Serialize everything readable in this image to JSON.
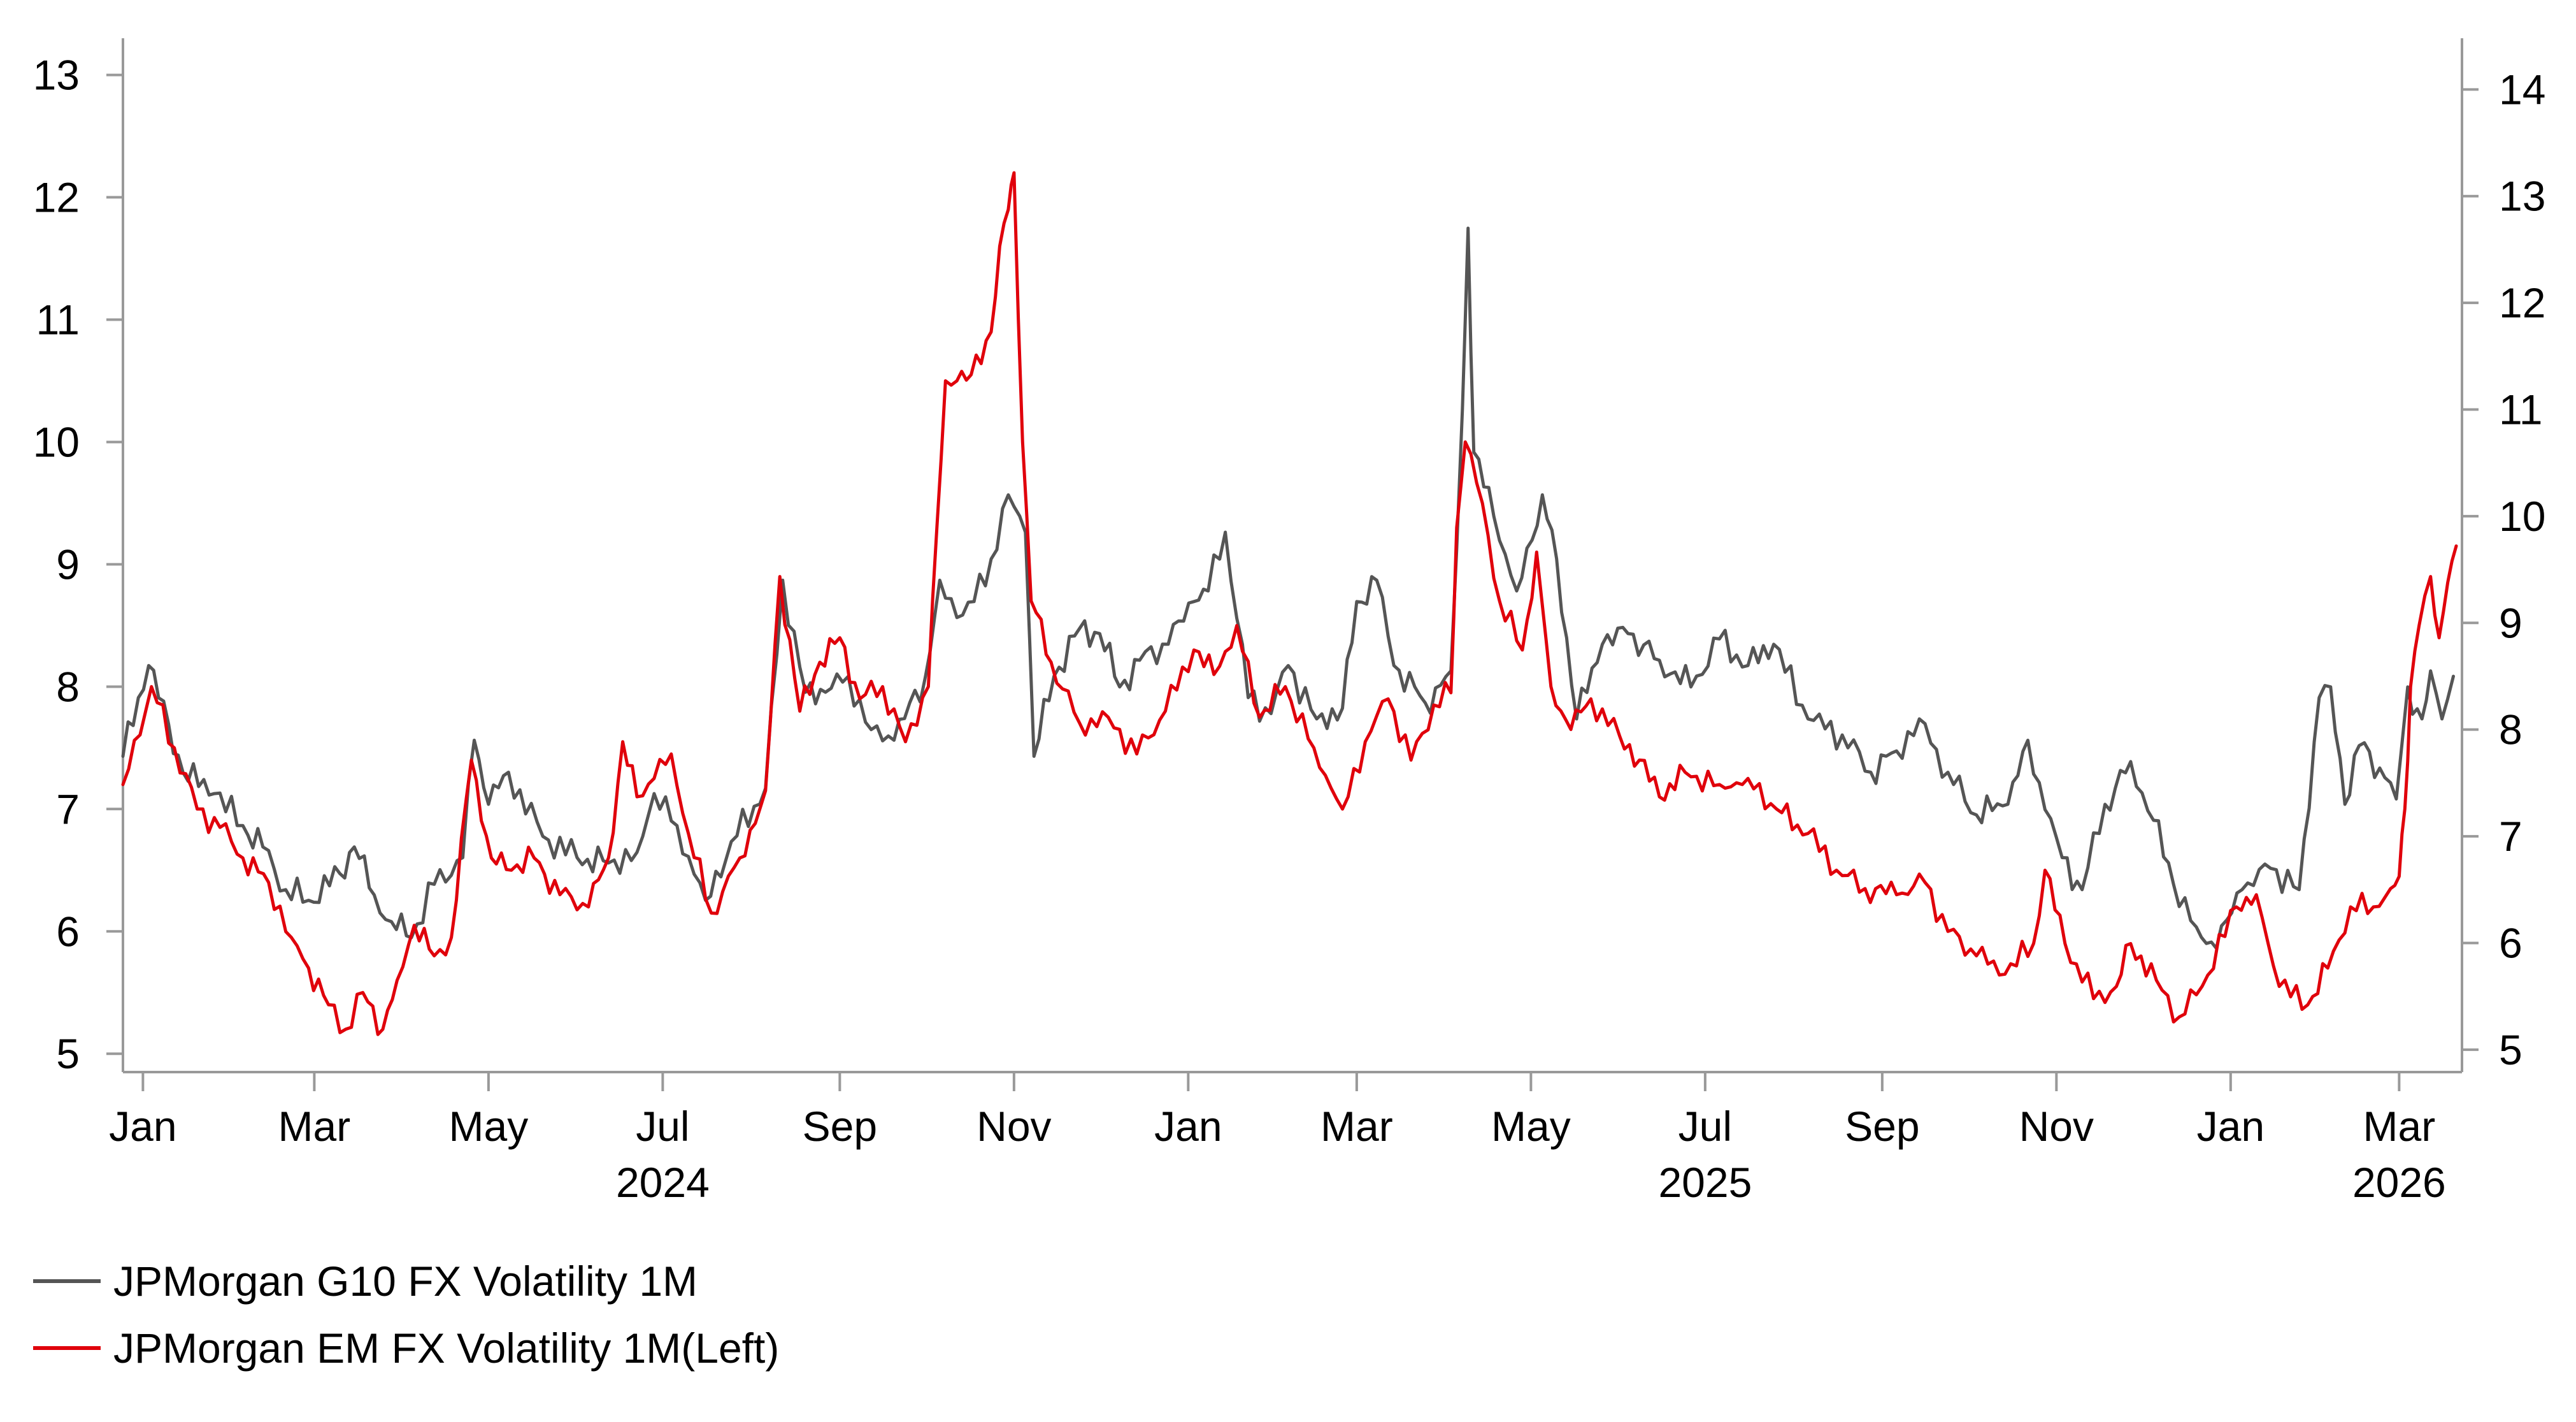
{
  "chart_data": {
    "type": "line",
    "x_axis": {
      "start": "2023-12-25",
      "end": "2026-03-23",
      "month_ticks": [
        {
          "date": "2024-01-01",
          "label": "Jan"
        },
        {
          "date": "2024-03-01",
          "label": "Mar"
        },
        {
          "date": "2024-05-01",
          "label": "May"
        },
        {
          "date": "2024-07-01",
          "label": "Jul"
        },
        {
          "date": "2024-09-01",
          "label": "Sep"
        },
        {
          "date": "2024-11-01",
          "label": "Nov"
        },
        {
          "date": "2025-01-01",
          "label": "Jan"
        },
        {
          "date": "2025-03-01",
          "label": "Mar"
        },
        {
          "date": "2025-05-01",
          "label": "May"
        },
        {
          "date": "2025-07-01",
          "label": "Jul"
        },
        {
          "date": "2025-09-01",
          "label": "Sep"
        },
        {
          "date": "2025-11-01",
          "label": "Nov"
        },
        {
          "date": "2026-01-01",
          "label": "Jan"
        },
        {
          "date": "2026-03-01",
          "label": "Mar"
        }
      ],
      "year_labels": [
        {
          "date": "2024-07-01",
          "label": "2024"
        },
        {
          "date": "2025-07-01",
          "label": "2025"
        },
        {
          "date": "2026-03-01",
          "label": "2026"
        }
      ]
    },
    "y_left": {
      "min": 4.85,
      "max": 13.3,
      "ticks": [
        5,
        6,
        7,
        8,
        9,
        10,
        11,
        12,
        13
      ]
    },
    "y_right": {
      "min": 4.79,
      "max": 14.48,
      "ticks": [
        5,
        6,
        7,
        8,
        9,
        10,
        11,
        12,
        13,
        14
      ]
    },
    "grid": false,
    "legend_position": "bottom-left",
    "series": [
      {
        "name": "JPMorgan G10 FX Volatility 1M",
        "axis": "right",
        "color": "#555555",
        "points": [
          [
            "2023-12-25",
            7.75
          ],
          [
            "2024-01-03",
            8.6
          ],
          [
            "2024-01-10",
            8.05
          ],
          [
            "2024-01-15",
            7.6
          ],
          [
            "2024-01-26",
            7.4
          ],
          [
            "2024-02-05",
            7.1
          ],
          [
            "2024-02-12",
            6.9
          ],
          [
            "2024-02-20",
            6.5
          ],
          [
            "2024-02-28",
            6.4
          ],
          [
            "2024-03-10",
            6.65
          ],
          [
            "2024-03-15",
            6.9
          ],
          [
            "2024-03-22",
            6.45
          ],
          [
            "2024-03-28",
            6.2
          ],
          [
            "2024-04-04",
            6.05
          ],
          [
            "2024-04-12",
            6.55
          ],
          [
            "2024-04-22",
            6.8
          ],
          [
            "2024-04-26",
            7.9
          ],
          [
            "2024-05-01",
            7.3
          ],
          [
            "2024-05-08",
            7.6
          ],
          [
            "2024-05-20",
            7.0
          ],
          [
            "2024-06-01",
            6.8
          ],
          [
            "2024-06-12",
            6.75
          ],
          [
            "2024-06-22",
            6.85
          ],
          [
            "2024-06-28",
            7.4
          ],
          [
            "2024-07-06",
            7.1
          ],
          [
            "2024-07-16",
            6.4
          ],
          [
            "2024-07-25",
            6.95
          ],
          [
            "2024-08-06",
            7.45
          ],
          [
            "2024-08-12",
            9.4
          ],
          [
            "2024-08-20",
            8.35
          ],
          [
            "2024-08-27",
            8.35
          ],
          [
            "2024-09-04",
            8.5
          ],
          [
            "2024-09-12",
            8.0
          ],
          [
            "2024-09-20",
            7.9
          ],
          [
            "2024-10-01",
            8.5
          ],
          [
            "2024-10-06",
            9.4
          ],
          [
            "2024-10-12",
            9.05
          ],
          [
            "2024-10-18",
            9.2
          ],
          [
            "2024-10-24",
            9.6
          ],
          [
            "2024-10-30",
            10.2
          ],
          [
            "2024-11-05",
            9.85
          ],
          [
            "2024-11-08",
            7.75
          ],
          [
            "2024-11-15",
            8.5
          ],
          [
            "2024-11-24",
            8.95
          ],
          [
            "2024-12-01",
            8.9
          ],
          [
            "2024-12-08",
            8.4
          ],
          [
            "2024-12-15",
            8.65
          ],
          [
            "2024-12-25",
            8.8
          ],
          [
            "2025-01-03",
            9.2
          ],
          [
            "2025-01-08",
            9.3
          ],
          [
            "2025-01-14",
            9.85
          ],
          [
            "2025-01-22",
            8.3
          ],
          [
            "2025-01-30",
            8.15
          ],
          [
            "2025-02-05",
            8.6
          ],
          [
            "2025-02-15",
            8.1
          ],
          [
            "2025-02-24",
            8.2
          ],
          [
            "2025-03-01",
            9.2
          ],
          [
            "2025-03-08",
            9.4
          ],
          [
            "2025-03-14",
            8.6
          ],
          [
            "2025-03-25",
            8.25
          ],
          [
            "2025-04-03",
            8.55
          ],
          [
            "2025-04-07",
            11.0
          ],
          [
            "2025-04-09",
            12.7
          ],
          [
            "2025-04-11",
            10.6
          ],
          [
            "2025-04-18",
            10.0
          ],
          [
            "2025-04-26",
            9.3
          ],
          [
            "2025-05-05",
            10.2
          ],
          [
            "2025-05-10",
            9.6
          ],
          [
            "2025-05-17",
            8.1
          ],
          [
            "2025-05-26",
            8.8
          ],
          [
            "2025-06-04",
            8.9
          ],
          [
            "2025-06-15",
            8.65
          ],
          [
            "2025-06-26",
            8.4
          ],
          [
            "2025-07-06",
            8.85
          ],
          [
            "2025-07-16",
            8.6
          ],
          [
            "2025-07-25",
            8.8
          ],
          [
            "2025-08-06",
            8.1
          ],
          [
            "2025-08-18",
            7.95
          ],
          [
            "2025-08-28",
            7.6
          ],
          [
            "2025-09-06",
            7.8
          ],
          [
            "2025-09-14",
            8.1
          ],
          [
            "2025-09-24",
            7.6
          ],
          [
            "2025-10-04",
            7.2
          ],
          [
            "2025-10-15",
            7.3
          ],
          [
            "2025-10-22",
            7.9
          ],
          [
            "2025-10-28",
            7.25
          ],
          [
            "2025-11-03",
            6.8
          ],
          [
            "2025-11-10",
            6.5
          ],
          [
            "2025-11-18",
            7.3
          ],
          [
            "2025-11-27",
            7.7
          ],
          [
            "2025-12-05",
            7.15
          ],
          [
            "2025-12-12",
            6.55
          ],
          [
            "2025-12-20",
            6.15
          ],
          [
            "2025-12-27",
            5.95
          ],
          [
            "2026-01-05",
            6.5
          ],
          [
            "2026-01-15",
            6.7
          ],
          [
            "2026-01-25",
            6.5
          ],
          [
            "2026-02-01",
            8.3
          ],
          [
            "2026-02-05",
            8.4
          ],
          [
            "2026-02-10",
            7.3
          ],
          [
            "2026-02-15",
            7.85
          ],
          [
            "2026-02-24",
            7.55
          ],
          [
            "2026-02-28",
            7.35
          ],
          [
            "2026-03-04",
            8.4
          ],
          [
            "2026-03-09",
            8.1
          ],
          [
            "2026-03-12",
            8.55
          ],
          [
            "2026-03-16",
            8.1
          ],
          [
            "2026-03-20",
            8.5
          ]
        ]
      },
      {
        "name": "JPMorgan EM FX Volatility 1M(Left)",
        "axis": "left",
        "color": "#E0000B",
        "points": [
          [
            "2023-12-25",
            7.2
          ],
          [
            "2024-01-04",
            8.0
          ],
          [
            "2024-01-12",
            7.5
          ],
          [
            "2024-01-20",
            7.0
          ],
          [
            "2024-01-28",
            6.85
          ],
          [
            "2024-02-05",
            6.6
          ],
          [
            "2024-02-14",
            6.4
          ],
          [
            "2024-02-22",
            5.95
          ],
          [
            "2024-02-28",
            5.7
          ],
          [
            "2024-03-06",
            5.4
          ],
          [
            "2024-03-12",
            5.2
          ],
          [
            "2024-03-18",
            5.5
          ],
          [
            "2024-03-25",
            5.2
          ],
          [
            "2024-03-30",
            5.6
          ],
          [
            "2024-04-05",
            6.05
          ],
          [
            "2024-04-12",
            5.8
          ],
          [
            "2024-04-18",
            5.95
          ],
          [
            "2024-04-25",
            7.4
          ],
          [
            "2024-05-02",
            6.6
          ],
          [
            "2024-05-09",
            6.5
          ],
          [
            "2024-05-17",
            6.6
          ],
          [
            "2024-05-26",
            6.3
          ],
          [
            "2024-06-05",
            6.2
          ],
          [
            "2024-06-12",
            6.6
          ],
          [
            "2024-06-17",
            7.55
          ],
          [
            "2024-06-22",
            7.1
          ],
          [
            "2024-06-28",
            7.25
          ],
          [
            "2024-07-04",
            7.45
          ],
          [
            "2024-07-10",
            6.8
          ],
          [
            "2024-07-18",
            6.15
          ],
          [
            "2024-07-28",
            6.6
          ],
          [
            "2024-08-06",
            7.15
          ],
          [
            "2024-08-11",
            8.9
          ],
          [
            "2024-08-18",
            7.8
          ],
          [
            "2024-08-25",
            8.2
          ],
          [
            "2024-09-01",
            8.4
          ],
          [
            "2024-09-08",
            7.9
          ],
          [
            "2024-09-16",
            8.0
          ],
          [
            "2024-09-24",
            7.55
          ],
          [
            "2024-10-02",
            8.0
          ],
          [
            "2024-10-05",
            9.3
          ],
          [
            "2024-10-08",
            10.5
          ],
          [
            "2024-10-12",
            10.5
          ],
          [
            "2024-10-17",
            10.55
          ],
          [
            "2024-10-24",
            10.9
          ],
          [
            "2024-10-27",
            11.6
          ],
          [
            "2024-10-30",
            11.9
          ],
          [
            "2024-11-01",
            12.2
          ],
          [
            "2024-11-04",
            10.0
          ],
          [
            "2024-11-07",
            8.7
          ],
          [
            "2024-11-14",
            8.2
          ],
          [
            "2024-11-24",
            7.7
          ],
          [
            "2024-12-04",
            7.75
          ],
          [
            "2024-12-14",
            7.45
          ],
          [
            "2024-12-24",
            7.8
          ],
          [
            "2025-01-03",
            8.3
          ],
          [
            "2025-01-10",
            8.1
          ],
          [
            "2025-01-18",
            8.5
          ],
          [
            "2025-01-26",
            7.75
          ],
          [
            "2025-02-04",
            8.0
          ],
          [
            "2025-02-14",
            7.5
          ],
          [
            "2025-02-24",
            7.0
          ],
          [
            "2025-03-04",
            7.55
          ],
          [
            "2025-03-12",
            7.9
          ],
          [
            "2025-03-20",
            7.4
          ],
          [
            "2025-03-28",
            7.85
          ],
          [
            "2025-04-03",
            7.95
          ],
          [
            "2025-04-05",
            9.3
          ],
          [
            "2025-04-08",
            10.0
          ],
          [
            "2025-04-14",
            9.5
          ],
          [
            "2025-04-20",
            8.7
          ],
          [
            "2025-04-28",
            8.3
          ],
          [
            "2025-05-03",
            9.1
          ],
          [
            "2025-05-08",
            8.0
          ],
          [
            "2025-05-15",
            7.65
          ],
          [
            "2025-05-22",
            7.9
          ],
          [
            "2025-06-01",
            7.6
          ],
          [
            "2025-06-08",
            7.4
          ],
          [
            "2025-06-15",
            7.1
          ],
          [
            "2025-06-24",
            7.3
          ],
          [
            "2025-07-06",
            7.2
          ],
          [
            "2025-07-16",
            7.25
          ],
          [
            "2025-07-26",
            7.0
          ],
          [
            "2025-08-06",
            6.8
          ],
          [
            "2025-08-16",
            6.5
          ],
          [
            "2025-08-26",
            6.35
          ],
          [
            "2025-09-06",
            6.3
          ],
          [
            "2025-09-16",
            6.4
          ],
          [
            "2025-09-24",
            6.0
          ],
          [
            "2025-10-04",
            5.8
          ],
          [
            "2025-10-14",
            5.65
          ],
          [
            "2025-10-24",
            5.9
          ],
          [
            "2025-10-28",
            6.5
          ],
          [
            "2025-11-04",
            5.9
          ],
          [
            "2025-11-14",
            5.45
          ],
          [
            "2025-11-22",
            5.55
          ],
          [
            "2025-11-27",
            5.9
          ],
          [
            "2025-12-06",
            5.6
          ],
          [
            "2025-12-14",
            5.3
          ],
          [
            "2025-12-22",
            5.55
          ],
          [
            "2026-01-03",
            6.2
          ],
          [
            "2026-01-10",
            6.3
          ],
          [
            "2026-01-18",
            5.55
          ],
          [
            "2026-01-28",
            5.4
          ],
          [
            "2026-02-04",
            5.7
          ],
          [
            "2026-02-12",
            6.2
          ],
          [
            "2026-02-20",
            6.2
          ],
          [
            "2026-02-26",
            6.35
          ],
          [
            "2026-03-01",
            6.45
          ],
          [
            "2026-03-03",
            7.0
          ],
          [
            "2026-03-05",
            8.0
          ],
          [
            "2026-03-08",
            8.5
          ],
          [
            "2026-03-12",
            8.9
          ],
          [
            "2026-03-15",
            8.4
          ],
          [
            "2026-03-18",
            8.85
          ],
          [
            "2026-03-21",
            9.15
          ]
        ]
      }
    ]
  }
}
